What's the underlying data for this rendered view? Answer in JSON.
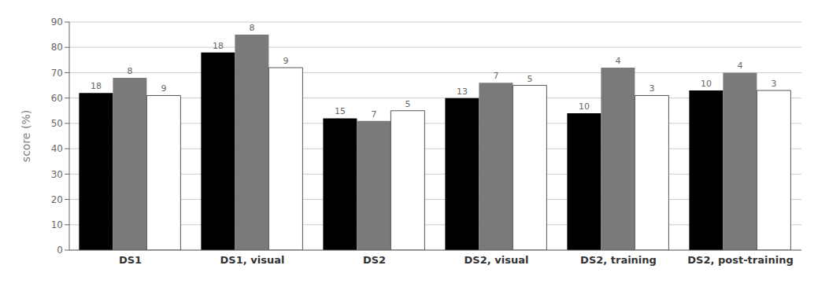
{
  "chart_data": {
    "type": "bar",
    "categories": [
      "DS1",
      "DS1, visual",
      "DS2",
      "DS2, visual",
      "DS2, training",
      "DS2, post-training"
    ],
    "series": [
      {
        "color": "#000000",
        "values": [
          62,
          78,
          52,
          60,
          54,
          63
        ],
        "counts": [
          18,
          18,
          15,
          13,
          10,
          10
        ]
      },
      {
        "color": "#7a7a7a",
        "values": [
          68,
          85,
          51,
          66,
          72,
          70
        ],
        "counts": [
          8,
          8,
          7,
          7,
          4,
          4
        ]
      },
      {
        "color": "#ffffff",
        "values": [
          61,
          72,
          55,
          65,
          61,
          63
        ],
        "counts": [
          9,
          9,
          5,
          5,
          3,
          3
        ]
      }
    ],
    "ylabel": "score (%)",
    "ylim": [
      0,
      90
    ],
    "yticks": [
      0,
      10,
      20,
      30,
      40,
      50,
      60,
      70,
      80,
      90
    ],
    "grid": true
  }
}
